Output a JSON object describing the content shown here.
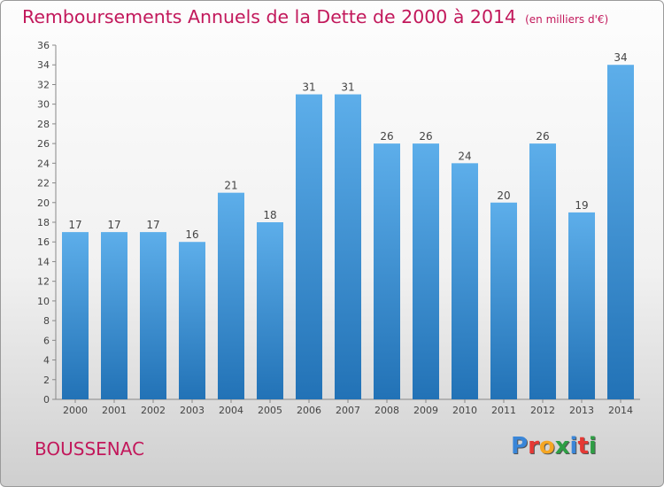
{
  "header": {
    "title": "Remboursements Annuels de la Dette de 2000 à 2014",
    "unit": "(en milliers d'€)"
  },
  "footer": {
    "commune": "BOUSSENAC",
    "brand_letters": [
      "P",
      "r",
      "o",
      "x",
      "i",
      "t",
      "i"
    ],
    "brand_colors": [
      "#3a86d8",
      "#e53935",
      "#f5a623",
      "#2e9e44",
      "#3a86d8",
      "#e53935",
      "#2e9e44"
    ]
  },
  "chart_data": {
    "type": "bar",
    "categories": [
      "2000",
      "2001",
      "2002",
      "2003",
      "2004",
      "2005",
      "2006",
      "2007",
      "2008",
      "2009",
      "2010",
      "2011",
      "2012",
      "2013",
      "2014"
    ],
    "values": [
      17,
      17,
      17,
      16,
      21,
      18,
      31,
      31,
      26,
      26,
      24,
      20,
      26,
      19,
      34
    ],
    "ylim": [
      0,
      36
    ],
    "ytick_step": 2,
    "grid": false,
    "bar_color": "#3d93d8",
    "title": "Remboursements Annuels de la Dette de 2000 à 2014"
  }
}
